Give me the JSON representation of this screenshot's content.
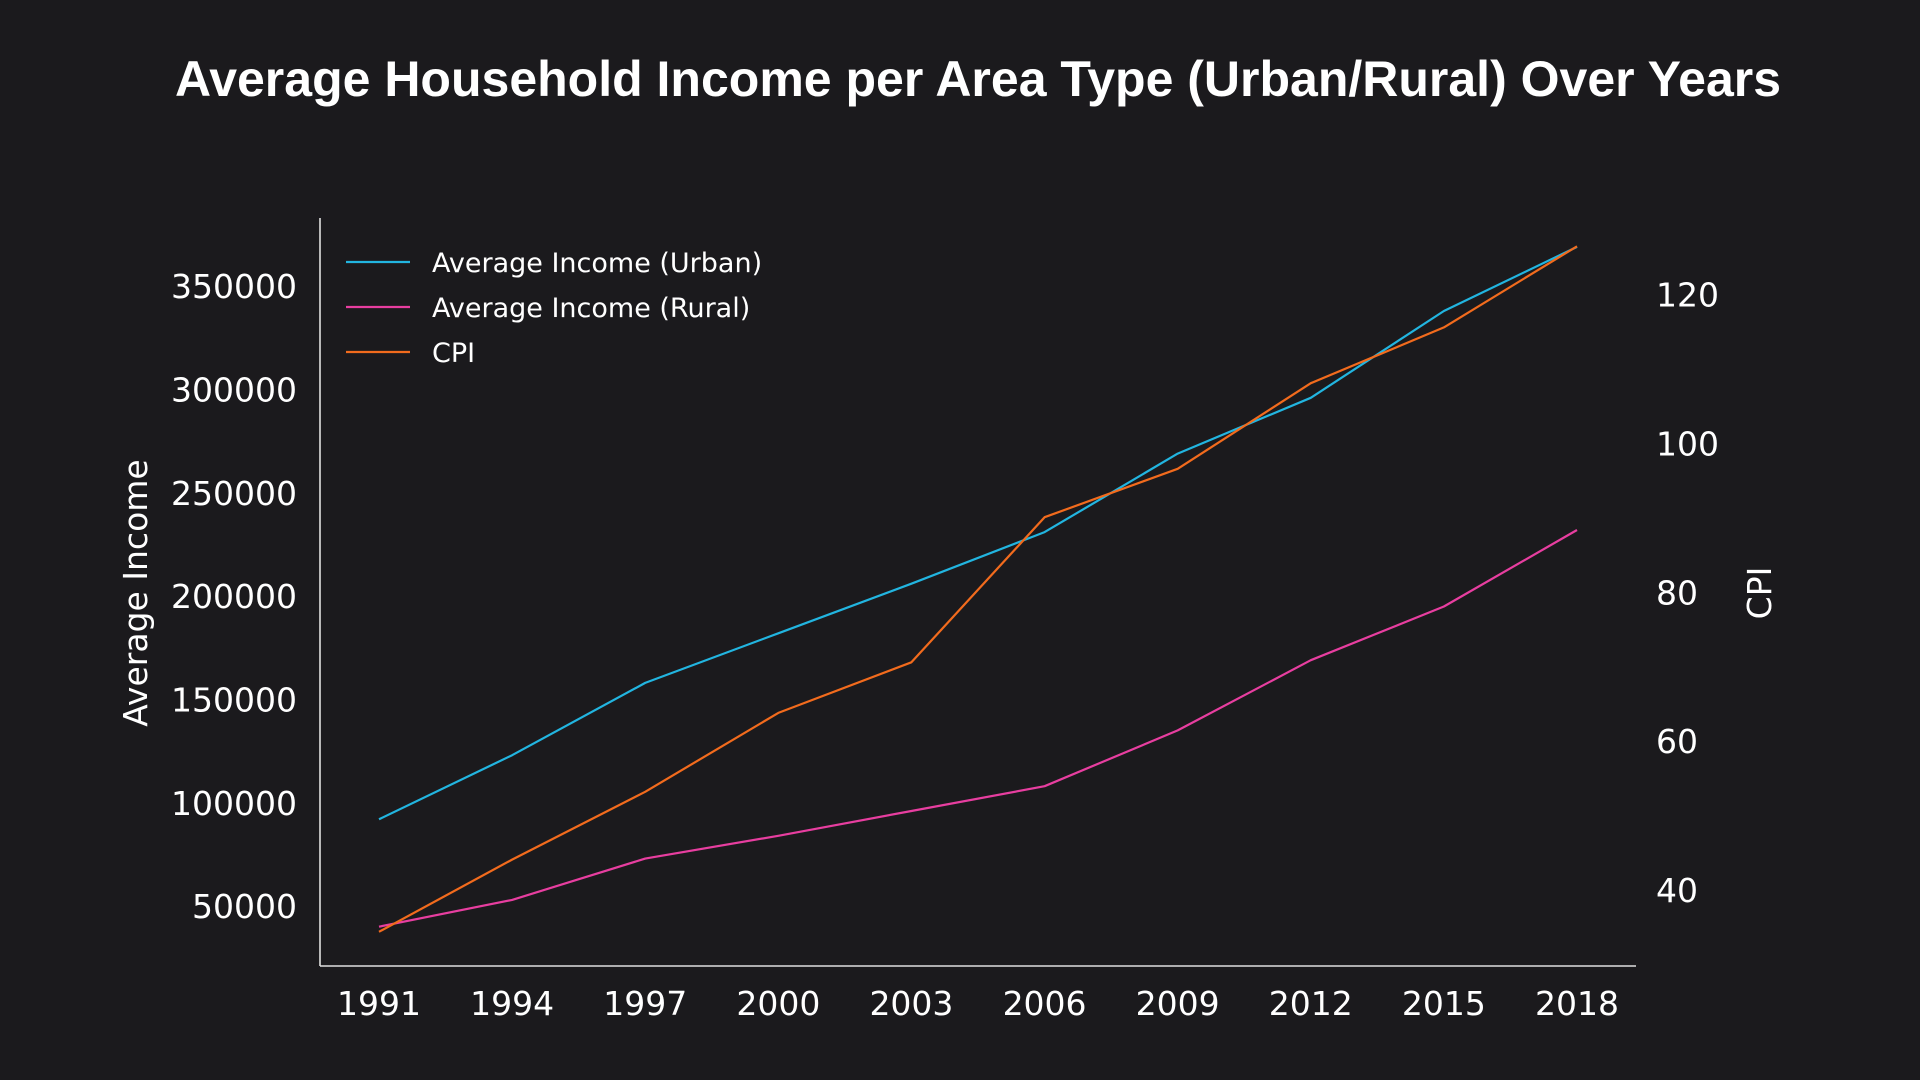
{
  "chart_data": {
    "type": "line",
    "title": "Average Household Income per Area Type (Urban/Rural) Over Years",
    "xlabel": "",
    "x": [
      1991,
      1994,
      1997,
      2000,
      2003,
      2006,
      2009,
      2012,
      2015,
      2018
    ],
    "y_left": {
      "label": "Average Income",
      "ticks": [
        50000,
        100000,
        150000,
        200000,
        250000,
        300000,
        350000
      ],
      "ylim": [
        21000,
        383000
      ]
    },
    "y_right": {
      "label": "CPI",
      "ticks": [
        40,
        60,
        80,
        100,
        120
      ],
      "ylim": [
        29.8,
        130.3
      ]
    },
    "series": [
      {
        "name": "Average Income (Urban)",
        "axis": "left",
        "color": "#22b5e0",
        "values": [
          92000,
          123000,
          158000,
          182000,
          206000,
          231000,
          269000,
          296000,
          338000,
          369000
        ]
      },
      {
        "name": "Average Income (Rural)",
        "axis": "left",
        "color": "#e83ea0",
        "values": [
          40000,
          53000,
          73000,
          84000,
          96000,
          108000,
          135000,
          169000,
          195000,
          232000
        ]
      },
      {
        "name": "CPI",
        "axis": "right",
        "color": "#f26b1d",
        "values": [
          34.4,
          44.1,
          53.2,
          63.8,
          70.6,
          90.1,
          96.6,
          108.1,
          115.6,
          126.5
        ]
      }
    ],
    "legend": "top-left",
    "grid": false
  }
}
